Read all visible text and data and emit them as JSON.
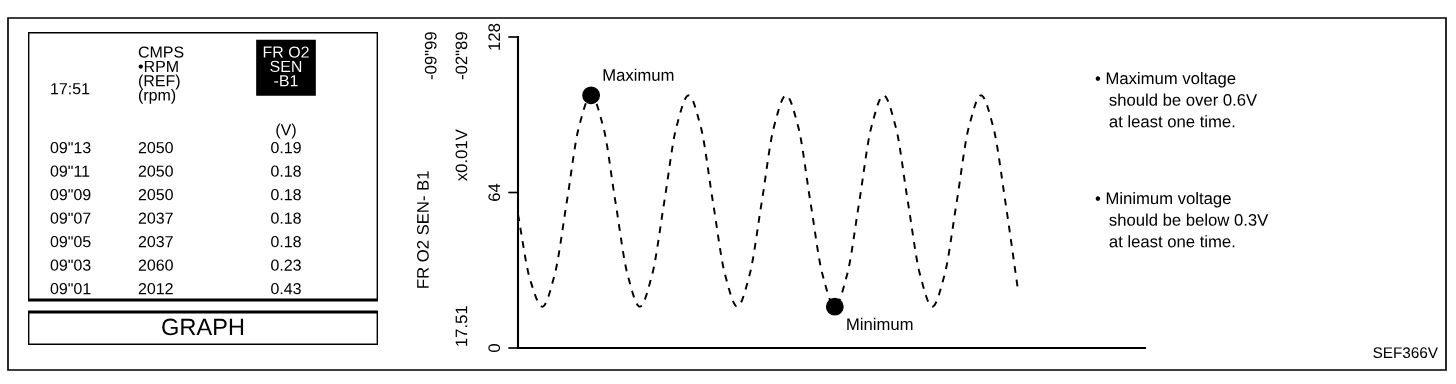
{
  "chart_data": [
    {
      "type": "other",
      "annotations": [
        "17:51",
        "CMPS\n•RPM\n(REF)\n(rpm)",
        "FR O2\nSEN\n-B1",
        "(V)",
        "09\"13",
        "2050",
        "0.19",
        "09\"11",
        "2050",
        "0.18",
        "09\"09",
        "2050",
        "0.18",
        "09\"07",
        "2037",
        "0.18",
        "09\"05",
        "2037",
        "0.18",
        "09\"03",
        "2060",
        "0.23",
        "09\"01",
        "2012",
        "0.43",
        "GRAPH"
      ]
    },
    {
      "type": "line",
      "ylabel": "FR O2 SEN- B1",
      "ylim": [
        0,
        128
      ],
      "yticks": [
        0,
        64,
        128
      ],
      "tick_labels": "y",
      "grid": false,
      "legend": false,
      "categories": [
        null,
        null,
        null,
        null,
        null,
        null,
        null,
        null,
        null,
        null,
        null,
        null,
        null,
        null,
        null,
        null,
        null,
        null,
        null,
        null,
        null,
        null,
        null,
        null,
        null,
        null,
        null,
        null,
        null,
        null,
        null,
        null,
        null,
        null,
        null,
        null,
        null,
        null,
        null,
        null,
        null,
        null
      ],
      "series": [
        {
          "type": "line",
          "color": "#000000",
          "line_style": "dashed",
          "marker": "none",
          "values": [
            55,
            28,
            17,
            30,
            60,
            91,
            104,
            91,
            60,
            30,
            17,
            30,
            60,
            91,
            104,
            91,
            60,
            30,
            17,
            30,
            60,
            91,
            104,
            91,
            60,
            30,
            17,
            30,
            60,
            91,
            104,
            91,
            60,
            30,
            17,
            30,
            60,
            91,
            104,
            91,
            60,
            25
          ]
        },
        {
          "type": "scatter",
          "color": "#000000",
          "marker": "circle",
          "values": [
            null,
            null,
            null,
            null,
            null,
            null,
            104,
            null,
            null,
            null,
            null,
            null,
            null,
            null,
            null,
            null,
            null,
            null,
            null,
            null,
            null,
            null,
            null,
            null,
            null,
            null,
            17,
            null,
            null,
            null,
            null,
            null,
            null,
            null,
            null,
            null,
            null,
            null,
            null,
            null,
            null,
            null
          ]
        }
      ],
      "annotations": [
        "Maximum",
        "Minimum",
        "-09\"99",
        "-02\"89",
        "x0.01V",
        "17.51",
        "• Maximum voltage\n   should be over 0.6V\n   at least one time.",
        "• Minimum voltage\n   should be below 0.3V\n   at least one time.",
        "SEF366V"
      ]
    }
  ]
}
